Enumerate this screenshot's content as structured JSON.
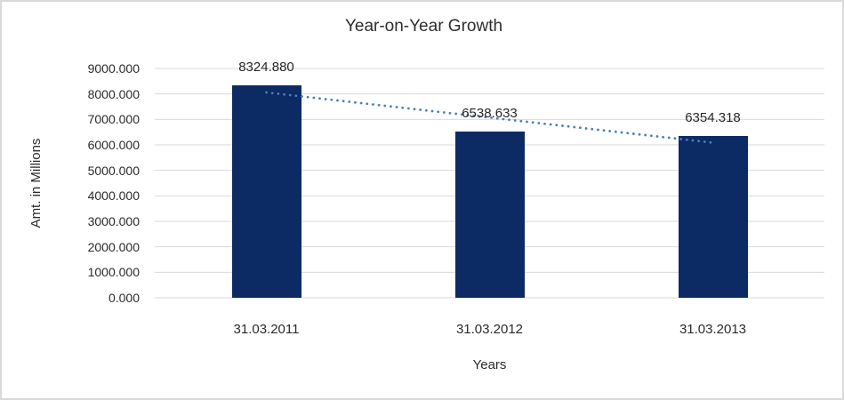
{
  "chart_data": {
    "type": "bar",
    "title": "Year-on-Year Growth",
    "categories": [
      "31.03.2011",
      "31.03.2012",
      "31.03.2013"
    ],
    "values": [
      8324.88,
      6538.633,
      6354.318
    ],
    "data_labels": [
      "8324.880",
      "6538.633",
      "6354.318"
    ],
    "xlabel": "Years",
    "ylabel": "Amt. in Millions",
    "ylim": [
      0,
      9000
    ],
    "ytick_labels": [
      "0.000",
      "1000.000",
      "2000.000",
      "3000.000",
      "4000.000",
      "5000.000",
      "6000.000",
      "7000.000",
      "8000.000",
      "9000.000"
    ],
    "grid": true,
    "legend": false,
    "trendline": {
      "type": "linear",
      "style": "dotted"
    },
    "colors": {
      "bar": "#0c2a63",
      "trendline": "#4a7ebb",
      "gridline": "#d9d9d9",
      "frame_border": "#d9d9d9",
      "background": "#ffffff",
      "text": "#2b2b2b"
    }
  }
}
